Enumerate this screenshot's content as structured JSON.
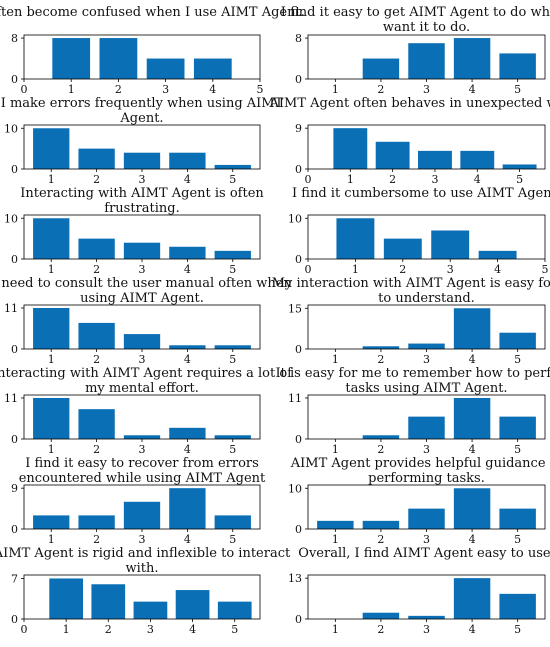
{
  "chart_data": [
    {
      "type": "bar",
      "title": "I often become confused when I use AIMT Agent.",
      "categories": [
        1,
        2,
        3,
        4
      ],
      "values": [
        8,
        8,
        4,
        4
      ],
      "yticks": [
        0,
        8
      ],
      "ylim": [
        0,
        8.6
      ],
      "xlim": [
        0,
        5
      ],
      "xticks": [
        0,
        1,
        2,
        3,
        4,
        5
      ],
      "xlabel": "",
      "ylabel": ""
    },
    {
      "type": "bar",
      "title": "I find it easy to get AIMT Agent to do what I want it to do.",
      "categories": [
        2,
        3,
        4,
        5
      ],
      "values": [
        4,
        7,
        8,
        5
      ],
      "yticks": [
        0,
        8
      ],
      "ylim": [
        0,
        8.6
      ],
      "xlim": [
        0.4,
        5.6
      ],
      "xticks": [
        1,
        2,
        3,
        4,
        5
      ],
      "xlabel": "",
      "ylabel": ""
    },
    {
      "type": "bar",
      "title": "I make errors frequently when using AIMT Agent.",
      "categories": [
        1,
        2,
        3,
        4,
        5
      ],
      "values": [
        10,
        5,
        4,
        4,
        1
      ],
      "yticks": [
        0,
        10
      ],
      "ylim": [
        0,
        10.8
      ],
      "xlim": [
        0.4,
        5.6
      ],
      "xticks": [
        1,
        2,
        3,
        4,
        5
      ],
      "xlabel": "",
      "ylabel": ""
    },
    {
      "type": "bar",
      "title": "AIMT Agent often behaves in unexpected ways.",
      "categories": [
        1,
        2,
        3,
        4,
        5
      ],
      "values": [
        9,
        6,
        4,
        4,
        1
      ],
      "yticks": [
        0,
        9
      ],
      "ylim": [
        0,
        9.7
      ],
      "xlim": [
        0,
        5.6
      ],
      "xticks": [
        0,
        1,
        2,
        3,
        4,
        5
      ],
      "xlabel": "",
      "ylabel": ""
    },
    {
      "type": "bar",
      "title": "Interacting with AIMT Agent is often frustrating.",
      "categories": [
        1,
        2,
        3,
        4,
        5
      ],
      "values": [
        10,
        5,
        4,
        3,
        2
      ],
      "yticks": [
        0,
        10
      ],
      "ylim": [
        0,
        10.8
      ],
      "xlim": [
        0.4,
        5.6
      ],
      "xticks": [
        1,
        2,
        3,
        4,
        5
      ],
      "xlabel": "",
      "ylabel": ""
    },
    {
      "type": "bar",
      "title": "I find it cumbersome to use AIMT Agent.",
      "categories": [
        1,
        2,
        3,
        4
      ],
      "values": [
        10,
        5,
        7,
        2
      ],
      "yticks": [
        0,
        10
      ],
      "ylim": [
        0,
        10.8
      ],
      "xlim": [
        0,
        5
      ],
      "xticks": [
        0,
        1,
        2,
        3,
        4,
        5
      ],
      "xlabel": "",
      "ylabel": ""
    },
    {
      "type": "bar",
      "title": "I need to consult the user manual often when using AIMT Agent.",
      "categories": [
        1,
        2,
        3,
        4,
        5
      ],
      "values": [
        11,
        7,
        4,
        1,
        1
      ],
      "yticks": [
        0,
        11
      ],
      "ylim": [
        0,
        11.8
      ],
      "xlim": [
        0.4,
        5.6
      ],
      "xticks": [
        1,
        2,
        3,
        4,
        5
      ],
      "xlabel": "",
      "ylabel": ""
    },
    {
      "type": "bar",
      "title": "My interaction with AIMT Agent is easy for me to understand.",
      "categories": [
        2,
        3,
        4,
        5
      ],
      "values": [
        1,
        2,
        15,
        6
      ],
      "yticks": [
        0,
        15
      ],
      "ylim": [
        0,
        16.2
      ],
      "xlim": [
        0.4,
        5.6
      ],
      "xticks": [
        1,
        2,
        3,
        4,
        5
      ],
      "xlabel": "",
      "ylabel": ""
    },
    {
      "type": "bar",
      "title": "Interacting with AIMT Agent requires a lot of my mental effort.",
      "categories": [
        1,
        2,
        3,
        4,
        5
      ],
      "values": [
        11,
        8,
        1,
        3,
        1
      ],
      "yticks": [
        0,
        11
      ],
      "ylim": [
        0,
        11.8
      ],
      "xlim": [
        0.4,
        5.6
      ],
      "xticks": [
        1,
        2,
        3,
        4,
        5
      ],
      "xlabel": "",
      "ylabel": ""
    },
    {
      "type": "bar",
      "title": "It is easy for me to remember how to perform tasks using AIMT Agent.",
      "categories": [
        2,
        3,
        4,
        5
      ],
      "values": [
        1,
        6,
        11,
        6
      ],
      "yticks": [
        0,
        11
      ],
      "ylim": [
        0,
        11.8
      ],
      "xlim": [
        0.4,
        5.6
      ],
      "xticks": [
        1,
        2,
        3,
        4,
        5
      ],
      "xlabel": "",
      "ylabel": ""
    },
    {
      "type": "bar",
      "title": "I find it easy to recover from errors encountered while using AIMT Agent",
      "categories": [
        1,
        2,
        3,
        4,
        5
      ],
      "values": [
        3,
        3,
        6,
        9,
        3
      ],
      "yticks": [
        0,
        9
      ],
      "ylim": [
        0,
        9.7
      ],
      "xlim": [
        0.4,
        5.6
      ],
      "xticks": [
        1,
        2,
        3,
        4,
        5
      ],
      "xlabel": "",
      "ylabel": ""
    },
    {
      "type": "bar",
      "title": "AIMT Agent provides helpful guidance in performing tasks.",
      "categories": [
        1,
        2,
        3,
        4,
        5
      ],
      "values": [
        2,
        2,
        5,
        10,
        5
      ],
      "yticks": [
        0,
        10
      ],
      "ylim": [
        0,
        10.8
      ],
      "xlim": [
        0.4,
        5.6
      ],
      "xticks": [
        1,
        2,
        3,
        4,
        5
      ],
      "xlabel": "",
      "ylabel": ""
    },
    {
      "type": "bar",
      "title": "AIMT Agent is rigid and inflexible to interact with.",
      "categories": [
        1,
        2,
        3,
        4,
        5
      ],
      "values": [
        7,
        6,
        3,
        5,
        3
      ],
      "yticks": [
        0,
        7
      ],
      "ylim": [
        0,
        7.6
      ],
      "xlim": [
        0,
        5.6
      ],
      "xticks": [
        0,
        1,
        2,
        3,
        4,
        5
      ],
      "xlabel": "",
      "ylabel": ""
    },
    {
      "type": "bar",
      "title": "Overall, I find AIMT Agent easy to use.",
      "categories": [
        2,
        3,
        4,
        5
      ],
      "values": [
        2,
        1,
        13,
        8
      ],
      "yticks": [
        0,
        13
      ],
      "ylim": [
        0,
        14
      ],
      "xlim": [
        0.4,
        5.6
      ],
      "xticks": [
        1,
        2,
        3,
        4,
        5
      ],
      "xlabel": "",
      "ylabel": ""
    }
  ],
  "colors": {
    "bar": "#0a6fb5",
    "axis": "#000000",
    "text": "#111111"
  }
}
